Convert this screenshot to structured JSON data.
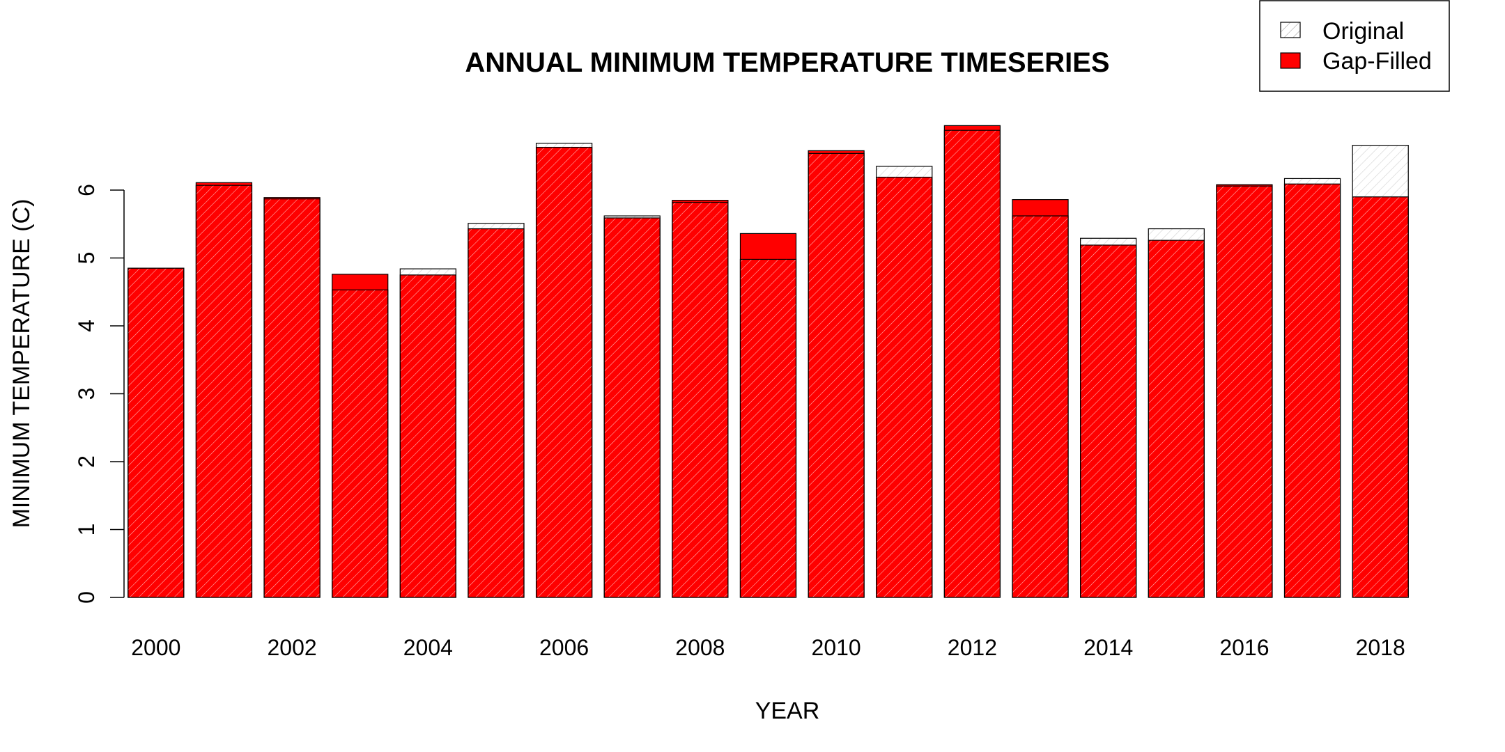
{
  "chart_data": {
    "type": "bar",
    "title": "ANNUAL MINIMUM TEMPERATURE TIMESERIES",
    "xlabel": "YEAR",
    "ylabel": "MINIMUM TEMPERATURE (C)",
    "categories": [
      2000,
      2001,
      2002,
      2003,
      2004,
      2005,
      2006,
      2007,
      2008,
      2009,
      2010,
      2011,
      2012,
      2013,
      2014,
      2015,
      2016,
      2017,
      2018
    ],
    "x_tick_labels": [
      "2000",
      "2002",
      "2004",
      "2006",
      "2008",
      "2010",
      "2012",
      "2014",
      "2016",
      "2018"
    ],
    "y_ticks": [
      0,
      1,
      2,
      3,
      4,
      5,
      6
    ],
    "ylim": [
      0,
      7.2
    ],
    "legend_position": "top-right",
    "grid": false,
    "series": [
      {
        "name": "Original",
        "pattern": "hatched",
        "values": [
          4.85,
          6.07,
          5.87,
          4.53,
          4.84,
          5.51,
          6.69,
          5.62,
          5.82,
          4.98,
          6.54,
          6.35,
          6.88,
          5.62,
          5.29,
          5.43,
          6.06,
          6.17,
          6.66
        ]
      },
      {
        "name": "Gap-Filled",
        "color": "#ff0000",
        "values": [
          4.85,
          6.11,
          5.89,
          4.76,
          4.75,
          5.43,
          6.63,
          5.59,
          5.85,
          5.36,
          6.58,
          6.19,
          6.95,
          5.86,
          5.19,
          5.26,
          6.08,
          6.09,
          5.9
        ]
      }
    ]
  }
}
